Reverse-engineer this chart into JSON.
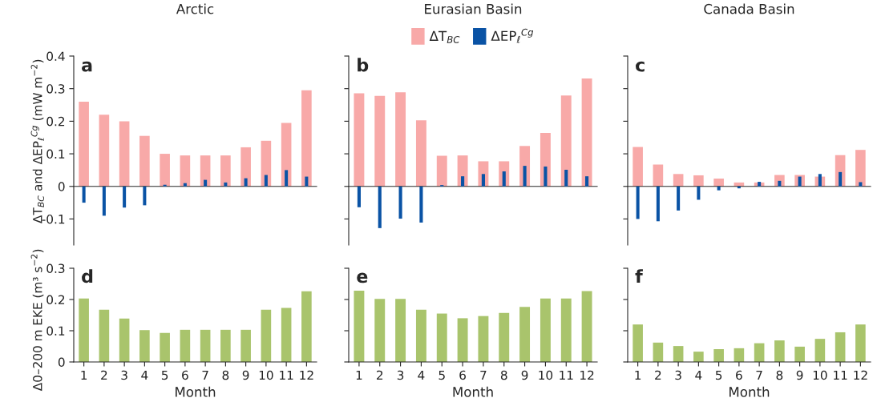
{
  "chart_data": [
    {
      "type": "bar",
      "title": "Arctic",
      "ylabel": "ΔT$_{BC}$ and ΔEP$_{ℓ}$$^{Cg}$ (mW m$^{−2}$)",
      "annotations": [
        "a"
      ],
      "categories": [
        "1",
        "2",
        "3",
        "4",
        "5",
        "6",
        "7",
        "8",
        "9",
        "10",
        "11",
        "12"
      ],
      "ylim": [
        -0.18,
        0.4
      ],
      "yticks": [
        -0.1,
        0,
        0.1,
        0.2,
        0.3,
        0.4
      ],
      "tick_labels": "y",
      "series": [
        {
          "color": "#f8a9a8",
          "values": [
            0.26,
            0.22,
            0.2,
            0.155,
            0.1,
            0.095,
            0.095,
            0.095,
            0.12,
            0.14,
            0.195,
            0.295
          ]
        },
        {
          "color": "#0a53a5",
          "values": [
            -0.05,
            -0.09,
            -0.065,
            -0.058,
            0.005,
            0.01,
            0.02,
            0.012,
            0.025,
            0.035,
            0.05,
            0.03
          ]
        }
      ]
    },
    {
      "type": "bar",
      "title": "Eurasian Basin",
      "annotations": [
        "b"
      ],
      "categories": [
        "1",
        "2",
        "3",
        "4",
        "5",
        "6",
        "7",
        "8",
        "9",
        "10",
        "11",
        "12"
      ],
      "ylim": [
        -0.18,
        0.4
      ],
      "yticks": [
        {
          "value": -0.1,
          "label": null
        },
        {
          "value": 0,
          "label": null
        },
        {
          "value": 0.1,
          "label": null
        },
        {
          "value": 0.2,
          "label": null
        },
        {
          "value": 0.3,
          "label": null
        },
        {
          "value": 0.4,
          "label": null
        }
      ],
      "tick_labels": false,
      "legend": "top",
      "series": [
        {
          "name": "ΔT$_{BC}$",
          "color": "#f8a9a8",
          "values": [
            0.286,
            0.278,
            0.289,
            0.203,
            0.094,
            0.095,
            0.077,
            0.077,
            0.124,
            0.164,
            0.279,
            0.331
          ]
        },
        {
          "name": "ΔEP$_{ℓ}$$^{Cg}$",
          "color": "#0a53a5",
          "values": [
            -0.064,
            -0.128,
            -0.099,
            -0.111,
            0.004,
            0.031,
            0.038,
            0.046,
            0.063,
            0.061,
            0.051,
            0.031
          ]
        }
      ]
    },
    {
      "type": "bar",
      "title": "Canada Basin",
      "annotations": [
        "c"
      ],
      "categories": [
        "1",
        "2",
        "3",
        "4",
        "5",
        "6",
        "7",
        "8",
        "9",
        "10",
        "11",
        "12"
      ],
      "ylim": [
        -0.18,
        0.4
      ],
      "yticks": [
        {
          "value": -0.1,
          "label": null
        },
        {
          "value": 0,
          "label": null
        },
        {
          "value": 0.1,
          "label": null
        },
        {
          "value": 0.2,
          "label": null
        },
        {
          "value": 0.3,
          "label": null
        },
        {
          "value": 0.4,
          "label": null
        }
      ],
      "tick_labels": false,
      "series": [
        {
          "color": "#f8a9a8",
          "values": [
            0.121,
            0.067,
            0.038,
            0.034,
            0.024,
            0.012,
            0.012,
            0.035,
            0.035,
            0.03,
            0.096,
            0.112
          ]
        },
        {
          "color": "#0a53a5",
          "values": [
            -0.1,
            -0.107,
            -0.074,
            -0.041,
            -0.012,
            -0.006,
            0.014,
            0.017,
            0.03,
            0.038,
            0.044,
            0.013
          ]
        }
      ]
    },
    {
      "type": "bar",
      "xlabel": "Month",
      "ylabel": "Δ0–200 m EKE (m³ s$^{−2}$)",
      "annotations": [
        "d"
      ],
      "categories": [
        "1",
        "2",
        "3",
        "4",
        "5",
        "6",
        "7",
        "8",
        "9",
        "10",
        "11",
        "12"
      ],
      "ylim": [
        0,
        0.3
      ],
      "yticks": [
        0,
        0.1,
        0.2,
        0.3
      ],
      "series": [
        {
          "color": "#a9c46c",
          "values": [
            0.203,
            0.167,
            0.139,
            0.102,
            0.093,
            0.103,
            0.103,
            0.103,
            0.103,
            0.167,
            0.173,
            0.226
          ]
        }
      ]
    },
    {
      "type": "bar",
      "xlabel": "Month",
      "annotations": [
        "e"
      ],
      "categories": [
        "1",
        "2",
        "3",
        "4",
        "5",
        "6",
        "7",
        "8",
        "9",
        "10",
        "11",
        "12"
      ],
      "ylim": [
        0,
        0.3
      ],
      "yticks": [
        {
          "value": 0,
          "label": null
        },
        {
          "value": 0.1,
          "label": null
        },
        {
          "value": 0.2,
          "label": null
        },
        {
          "value": 0.3,
          "label": null
        }
      ],
      "tick_labels": "x",
      "series": [
        {
          "color": "#a9c46c",
          "values": [
            0.228,
            0.202,
            0.202,
            0.167,
            0.155,
            0.14,
            0.147,
            0.157,
            0.176,
            0.203,
            0.203,
            0.227
          ]
        }
      ]
    },
    {
      "type": "bar",
      "xlabel": "Month",
      "annotations": [
        "f"
      ],
      "categories": [
        "1",
        "2",
        "3",
        "4",
        "5",
        "6",
        "7",
        "8",
        "9",
        "10",
        "11",
        "12"
      ],
      "ylim": [
        0,
        0.3
      ],
      "yticks": [
        {
          "value": 0,
          "label": null
        },
        {
          "value": 0.1,
          "label": null
        },
        {
          "value": 0.2,
          "label": null
        },
        {
          "value": 0.3,
          "label": null
        }
      ],
      "tick_labels": "x",
      "series": [
        {
          "color": "#a9c46c",
          "values": [
            0.12,
            0.062,
            0.051,
            0.033,
            0.041,
            0.044,
            0.06,
            0.069,
            0.049,
            0.074,
            0.095,
            0.12
          ]
        }
      ]
    }
  ]
}
